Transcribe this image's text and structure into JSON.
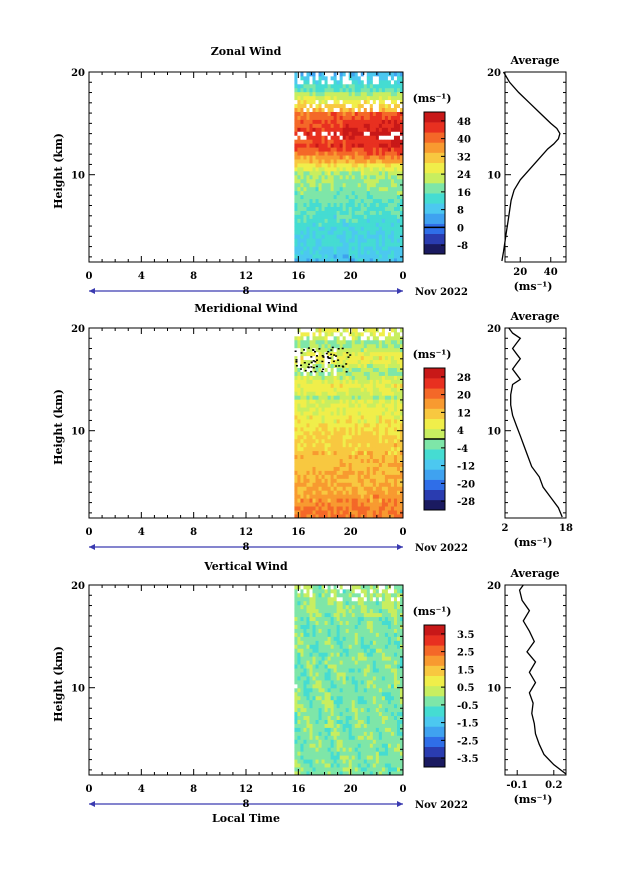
{
  "colors": {
    "palette": [
      "#1a1a60",
      "#2a3cb0",
      "#2f6ee8",
      "#3fa2f0",
      "#4cc8f0",
      "#45dcd2",
      "#7ee6a8",
      "#c8ee60",
      "#f0ee4a",
      "#f8c840",
      "#f89a30",
      "#f46828",
      "#e83020",
      "#c81818"
    ],
    "missing": "#ffffff",
    "line": "#000000"
  },
  "shared": {
    "x_ticks": [
      "0",
      "4",
      "8",
      "12",
      "16",
      "20",
      "0"
    ],
    "date_mark": "8",
    "month_year": "Nov 2022",
    "y_ticks": [
      "20",
      "10"
    ],
    "ylabel": "Height (km)",
    "xlabel": "Local Time",
    "unit": "(ms⁻¹)",
    "avg_title": "Average"
  },
  "chart_data": [
    {
      "type": "heatmap",
      "title": "Zonal Wind",
      "ylabel": "Height (km)",
      "x_range_hours": [
        0,
        24
      ],
      "data_start_hour": 15.7,
      "y_range_km": [
        1.5,
        20
      ],
      "colorbar_ticks": [
        "48",
        "40",
        "32",
        "24",
        "16",
        "8",
        "0",
        "-8"
      ],
      "colorbar_range": [
        -12,
        52
      ],
      "zero_line_value": 0,
      "profile": [
        [
          1.6,
          8
        ],
        [
          2.5,
          9
        ],
        [
          3.5,
          10
        ],
        [
          4.5,
          11
        ],
        [
          5.5,
          12
        ],
        [
          6.5,
          13
        ],
        [
          7.5,
          14
        ],
        [
          8.5,
          16
        ],
        [
          9.5,
          20
        ],
        [
          10.5,
          26
        ],
        [
          11.5,
          32
        ],
        [
          12.5,
          38
        ],
        [
          13,
          42
        ],
        [
          13.5,
          45
        ],
        [
          14,
          46
        ],
        [
          14.5,
          44
        ],
        [
          15,
          40
        ],
        [
          16,
          33
        ],
        [
          17,
          26
        ],
        [
          18,
          19
        ],
        [
          19,
          13
        ],
        [
          20,
          9
        ]
      ],
      "profile_xlim": [
        10,
        50
      ],
      "profile_xticks": [
        "20",
        "40"
      ],
      "profile_unit": "(ms⁻¹)"
    },
    {
      "type": "heatmap",
      "title": "Meridional Wind",
      "ylabel": "Height (km)",
      "x_range_hours": [
        0,
        24
      ],
      "data_start_hour": 15.7,
      "y_range_km": [
        1.5,
        20
      ],
      "colorbar_ticks": [
        "28",
        "20",
        "12",
        "4",
        "-4",
        "-12",
        "-20",
        "-28"
      ],
      "colorbar_range": [
        -32,
        32
      ],
      "zero_line_value": 0,
      "profile": [
        [
          1.6,
          17
        ],
        [
          2.5,
          16
        ],
        [
          3.5,
          14
        ],
        [
          4.5,
          12
        ],
        [
          5.5,
          11
        ],
        [
          6.5,
          9
        ],
        [
          7.5,
          8
        ],
        [
          8.5,
          7
        ],
        [
          9.5,
          6
        ],
        [
          10.5,
          5
        ],
        [
          11.5,
          4
        ],
        [
          12.5,
          3.5
        ],
        [
          13.5,
          3.5
        ],
        [
          14.5,
          4
        ],
        [
          15,
          6
        ],
        [
          15.5,
          5
        ],
        [
          16,
          4
        ],
        [
          16.5,
          5
        ],
        [
          17,
          6
        ],
        [
          17.5,
          5
        ],
        [
          18,
          4
        ],
        [
          18.5,
          5
        ],
        [
          19,
          6
        ],
        [
          19.5,
          4
        ],
        [
          20,
          3
        ]
      ],
      "profile_xlim": [
        2,
        18
      ],
      "profile_xticks": [
        "2",
        "18"
      ],
      "profile_unit": "(ms⁻¹)"
    },
    {
      "type": "heatmap",
      "title": "Vertical Wind",
      "ylabel": "Height (km)",
      "xlabel": "Local Time",
      "x_range_hours": [
        0,
        24
      ],
      "data_start_hour": 15.7,
      "y_range_km": [
        1.5,
        20
      ],
      "colorbar_ticks": [
        "3.5",
        "2.5",
        "1.5",
        "0.5",
        "-0.5",
        "-1.5",
        "-2.5",
        "-3.5"
      ],
      "colorbar_range": [
        -4,
        4
      ],
      "zero_line_value": null,
      "profile": [
        [
          1.6,
          0.3
        ],
        [
          2.5,
          0.2
        ],
        [
          3.5,
          0.12
        ],
        [
          4.5,
          0.08
        ],
        [
          5.5,
          0.05
        ],
        [
          6.5,
          0.04
        ],
        [
          7.5,
          0.02
        ],
        [
          8.5,
          0.03
        ],
        [
          9.5,
          0.0
        ],
        [
          10.5,
          0.05
        ],
        [
          11.5,
          0.0
        ],
        [
          12.5,
          0.05
        ],
        [
          13.5,
          -0.02
        ],
        [
          14.5,
          0.04
        ],
        [
          15.5,
          0.0
        ],
        [
          16.5,
          -0.05
        ],
        [
          17.5,
          0.0
        ],
        [
          18.5,
          -0.06
        ],
        [
          19.5,
          -0.08
        ],
        [
          20,
          -0.05
        ]
      ],
      "profile_xlim": [
        -0.2,
        0.3
      ],
      "profile_xticks": [
        "-0.1",
        "0.2"
      ],
      "profile_unit": "(ms⁻¹)"
    }
  ]
}
